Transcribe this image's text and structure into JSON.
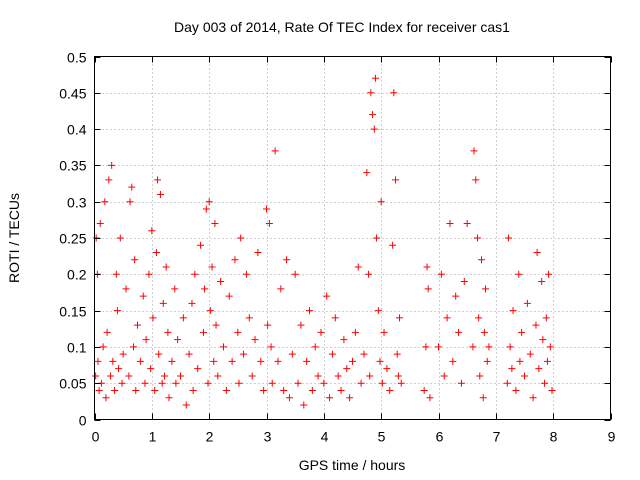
{
  "chart_data": {
    "type": "scatter",
    "title": "Day 003 of 2014, Rate Of TEC Index for receiver cas1",
    "xlabel": "GPS time / hours",
    "ylabel": "ROTI / TECUs",
    "xlim": [
      0,
      9
    ],
    "ylim": [
      0,
      0.5
    ],
    "xticks": [
      "0",
      "1",
      "2",
      "3",
      "4",
      "5",
      "6",
      "7",
      "8",
      "9"
    ],
    "yticks": [
      "0",
      "0.05",
      "0.1",
      "0.15",
      "0.2",
      "0.25",
      "0.3",
      "0.35",
      "0.4",
      "0.45",
      "0.5"
    ],
    "grid": true,
    "marker": "+",
    "color": "#ff0000",
    "series": [
      {
        "name": "cas1",
        "points": [
          [
            0.02,
            0.06
          ],
          [
            0.03,
            0.25
          ],
          [
            0.05,
            0.2
          ],
          [
            0.06,
            0.08
          ],
          [
            0.08,
            0.04
          ],
          [
            0.1,
            0.27
          ],
          [
            0.12,
            0.05
          ],
          [
            0.15,
            0.1
          ],
          [
            0.18,
            0.3
          ],
          [
            0.2,
            0.03
          ],
          [
            0.22,
            0.12
          ],
          [
            0.25,
            0.33
          ],
          [
            0.28,
            0.06
          ],
          [
            0.3,
            0.35
          ],
          [
            0.32,
            0.08
          ],
          [
            0.35,
            0.04
          ],
          [
            0.38,
            0.2
          ],
          [
            0.4,
            0.15
          ],
          [
            0.42,
            0.07
          ],
          [
            0.45,
            0.25
          ],
          [
            0.48,
            0.05
          ],
          [
            0.5,
            0.09
          ],
          [
            0.55,
            0.18
          ],
          [
            0.6,
            0.06
          ],
          [
            0.62,
            0.3
          ],
          [
            0.65,
            0.32
          ],
          [
            0.68,
            0.1
          ],
          [
            0.7,
            0.22
          ],
          [
            0.72,
            0.04
          ],
          [
            0.75,
            0.13
          ],
          [
            0.8,
            0.08
          ],
          [
            0.85,
            0.17
          ],
          [
            0.88,
            0.05
          ],
          [
            0.9,
            0.11
          ],
          [
            0.95,
            0.2
          ],
          [
            0.98,
            0.07
          ],
          [
            1.0,
            0.26
          ],
          [
            1.02,
            0.14
          ],
          [
            1.05,
            0.04
          ],
          [
            1.08,
            0.23
          ],
          [
            1.1,
            0.33
          ],
          [
            1.12,
            0.09
          ],
          [
            1.15,
            0.31
          ],
          [
            1.18,
            0.05
          ],
          [
            1.2,
            0.16
          ],
          [
            1.22,
            0.06
          ],
          [
            1.25,
            0.21
          ],
          [
            1.28,
            0.12
          ],
          [
            1.3,
            0.03
          ],
          [
            1.35,
            0.08
          ],
          [
            1.4,
            0.18
          ],
          [
            1.42,
            0.05
          ],
          [
            1.45,
            0.11
          ],
          [
            1.5,
            0.06
          ],
          [
            1.55,
            0.14
          ],
          [
            1.6,
            0.02
          ],
          [
            1.65,
            0.09
          ],
          [
            1.7,
            0.16
          ],
          [
            1.72,
            0.04
          ],
          [
            1.75,
            0.2
          ],
          [
            1.8,
            0.07
          ],
          [
            1.85,
            0.24
          ],
          [
            1.9,
            0.12
          ],
          [
            1.92,
            0.18
          ],
          [
            1.95,
            0.29
          ],
          [
            1.98,
            0.05
          ],
          [
            2.0,
            0.3
          ],
          [
            2.02,
            0.15
          ],
          [
            2.05,
            0.21
          ],
          [
            2.08,
            0.08
          ],
          [
            2.1,
            0.27
          ],
          [
            2.12,
            0.13
          ],
          [
            2.15,
            0.06
          ],
          [
            2.2,
            0.19
          ],
          [
            2.25,
            0.1
          ],
          [
            2.3,
            0.04
          ],
          [
            2.35,
            0.17
          ],
          [
            2.4,
            0.08
          ],
          [
            2.45,
            0.22
          ],
          [
            2.5,
            0.12
          ],
          [
            2.52,
            0.05
          ],
          [
            2.55,
            0.25
          ],
          [
            2.6,
            0.09
          ],
          [
            2.65,
            0.2
          ],
          [
            2.7,
            0.14
          ],
          [
            2.75,
            0.06
          ],
          [
            2.8,
            0.11
          ],
          [
            2.85,
            0.23
          ],
          [
            2.9,
            0.08
          ],
          [
            2.95,
            0.04
          ],
          [
            3.0,
            0.29
          ],
          [
            3.02,
            0.13
          ],
          [
            3.05,
            0.27
          ],
          [
            3.08,
            0.1
          ],
          [
            3.1,
            0.05
          ],
          [
            3.15,
            0.37
          ],
          [
            3.2,
            0.08
          ],
          [
            3.25,
            0.18
          ],
          [
            3.3,
            0.04
          ],
          [
            3.35,
            0.22
          ],
          [
            3.4,
            0.03
          ],
          [
            3.45,
            0.09
          ],
          [
            3.5,
            0.2
          ],
          [
            3.55,
            0.05
          ],
          [
            3.6,
            0.13
          ],
          [
            3.65,
            0.02
          ],
          [
            3.7,
            0.08
          ],
          [
            3.75,
            0.15
          ],
          [
            3.8,
            0.04
          ],
          [
            3.85,
            0.1
          ],
          [
            3.9,
            0.06
          ],
          [
            3.95,
            0.12
          ],
          [
            4.0,
            0.05
          ],
          [
            4.05,
            0.17
          ],
          [
            4.1,
            0.03
          ],
          [
            4.15,
            0.09
          ],
          [
            4.2,
            0.14
          ],
          [
            4.25,
            0.06
          ],
          [
            4.3,
            0.04
          ],
          [
            4.35,
            0.11
          ],
          [
            4.4,
            0.07
          ],
          [
            4.45,
            0.03
          ],
          [
            4.5,
            0.08
          ],
          [
            4.55,
            0.12
          ],
          [
            4.6,
            0.21
          ],
          [
            4.65,
            0.05
          ],
          [
            4.7,
            0.09
          ],
          [
            4.75,
            0.34
          ],
          [
            4.78,
            0.2
          ],
          [
            4.8,
            0.06
          ],
          [
            4.82,
            0.45
          ],
          [
            4.85,
            0.42
          ],
          [
            4.88,
            0.4
          ],
          [
            4.9,
            0.47
          ],
          [
            4.92,
            0.25
          ],
          [
            4.95,
            0.15
          ],
          [
            4.98,
            0.08
          ],
          [
            5.0,
            0.3
          ],
          [
            5.02,
            0.05
          ],
          [
            5.05,
            0.12
          ],
          [
            5.1,
            0.07
          ],
          [
            5.15,
            0.04
          ],
          [
            5.2,
            0.24
          ],
          [
            5.22,
            0.45
          ],
          [
            5.25,
            0.33
          ],
          [
            5.28,
            0.09
          ],
          [
            5.3,
            0.06
          ],
          [
            5.32,
            0.14
          ],
          [
            5.35,
            0.05
          ],
          [
            5.75,
            0.04
          ],
          [
            5.78,
            0.1
          ],
          [
            5.8,
            0.21
          ],
          [
            5.82,
            0.18
          ],
          [
            5.85,
            0.03
          ],
          [
            6.0,
            0.1
          ],
          [
            6.05,
            0.2
          ],
          [
            6.1,
            0.06
          ],
          [
            6.15,
            0.14
          ],
          [
            6.2,
            0.27
          ],
          [
            6.25,
            0.08
          ],
          [
            6.3,
            0.17
          ],
          [
            6.35,
            0.12
          ],
          [
            6.4,
            0.05
          ],
          [
            6.45,
            0.19
          ],
          [
            6.5,
            0.27
          ],
          [
            6.6,
            0.1
          ],
          [
            6.62,
            0.37
          ],
          [
            6.65,
            0.33
          ],
          [
            6.68,
            0.25
          ],
          [
            6.7,
            0.14
          ],
          [
            6.72,
            0.06
          ],
          [
            6.75,
            0.22
          ],
          [
            6.78,
            0.03
          ],
          [
            6.8,
            0.12
          ],
          [
            6.82,
            0.18
          ],
          [
            6.85,
            0.08
          ],
          [
            6.88,
            0.1
          ],
          [
            7.2,
            0.05
          ],
          [
            7.22,
            0.25
          ],
          [
            7.25,
            0.1
          ],
          [
            7.28,
            0.07
          ],
          [
            7.3,
            0.15
          ],
          [
            7.35,
            0.04
          ],
          [
            7.4,
            0.2
          ],
          [
            7.42,
            0.08
          ],
          [
            7.45,
            0.12
          ],
          [
            7.5,
            0.06
          ],
          [
            7.55,
            0.16
          ],
          [
            7.6,
            0.09
          ],
          [
            7.65,
            0.03
          ],
          [
            7.7,
            0.13
          ],
          [
            7.72,
            0.23
          ],
          [
            7.75,
            0.07
          ],
          [
            7.8,
            0.19
          ],
          [
            7.82,
            0.11
          ],
          [
            7.85,
            0.05
          ],
          [
            7.88,
            0.14
          ],
          [
            7.9,
            0.08
          ],
          [
            7.92,
            0.2
          ],
          [
            7.95,
            0.1
          ],
          [
            7.98,
            0.04
          ]
        ]
      }
    ]
  }
}
